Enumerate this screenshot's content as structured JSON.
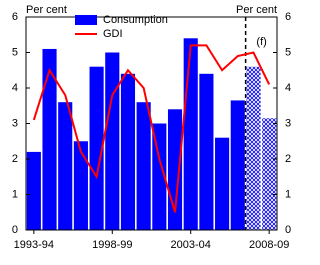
{
  "chart_data": {
    "type": "bar",
    "categories": [
      "1993-94",
      null,
      null,
      null,
      null,
      "1998-99",
      null,
      null,
      null,
      null,
      "2003-04",
      null,
      null,
      null,
      null,
      "2008-09"
    ],
    "series": [
      {
        "name": "Consumption",
        "type": "bar",
        "color": "#0000ff",
        "values": [
          2.2,
          5.1,
          3.6,
          2.5,
          4.6,
          5.0,
          4.4,
          3.6,
          3.0,
          3.4,
          5.4,
          4.4,
          2.6,
          3.65,
          4.6,
          3.15
        ]
      },
      {
        "name": "GDI",
        "type": "line",
        "color": "#ff0000",
        "values": [
          3.1,
          4.5,
          3.8,
          2.2,
          1.5,
          3.8,
          4.5,
          4.0,
          2.0,
          0.5,
          5.2,
          5.2,
          4.5,
          4.9,
          5.0,
          4.1
        ]
      }
    ],
    "y_label": "Per cent",
    "y2_label": "Per cent",
    "ylim": [
      0,
      6
    ],
    "yticks": [
      0,
      1,
      2,
      3,
      4,
      5,
      6
    ],
    "y2lim": [
      0,
      6
    ],
    "y2ticks": [
      0,
      1,
      2,
      3,
      4,
      5,
      6
    ],
    "forecast": {
      "label": "(f)",
      "start": 14
    },
    "legend": "upper left"
  }
}
